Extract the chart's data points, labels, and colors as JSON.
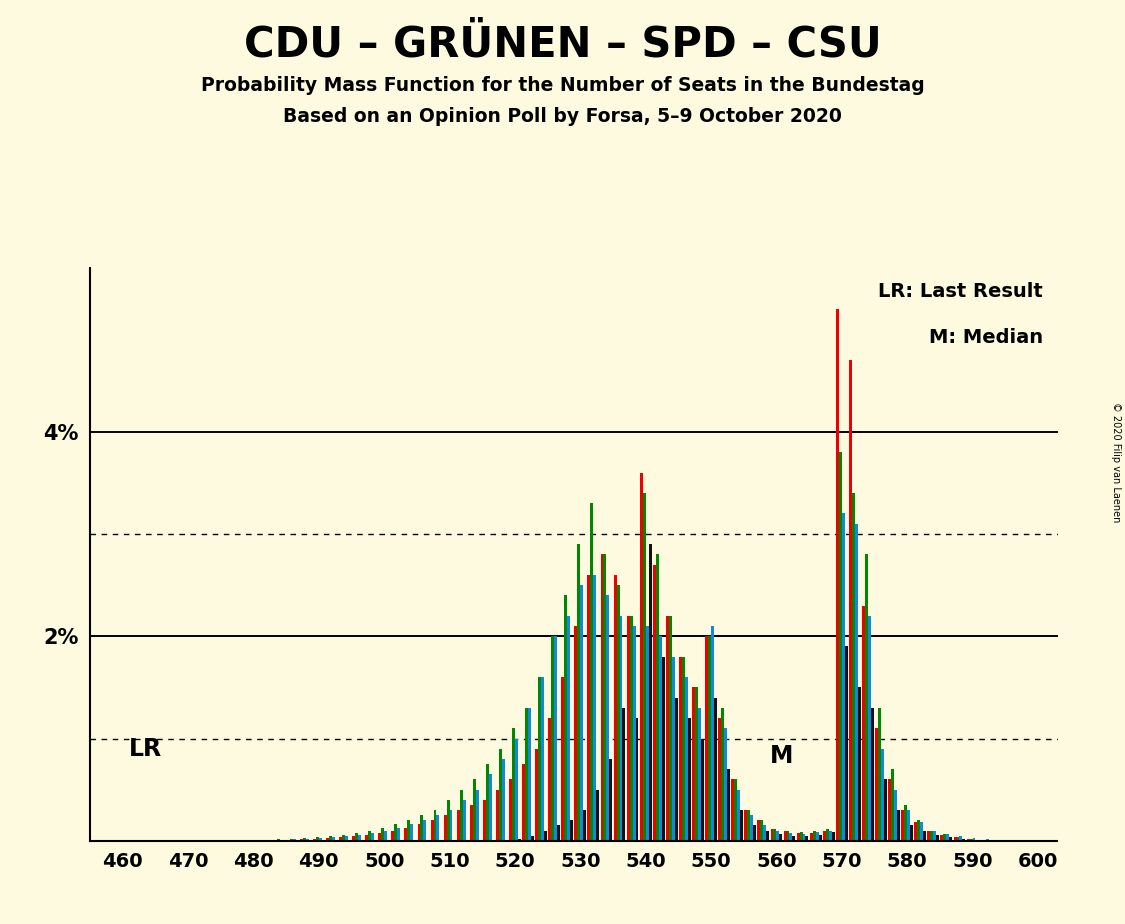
{
  "title": "CDU – GRÜNEN – SPD – CSU",
  "subtitle1": "Probability Mass Function for the Number of Seats in the Bundestag",
  "subtitle2": "Based on an Opinion Poll by Forsa, 5–9 October 2020",
  "copyright": "© 2020 Filip van Laenen",
  "legend1": "LR: Last Result",
  "legend2": "M: Median",
  "lr_label": "LR",
  "m_label": "M",
  "background_color": "#FEFAE0",
  "color_CDU": "#EE0000",
  "color_GRU": "#008800",
  "color_SPD": "#1188DD",
  "color_CSU": "#111111",
  "ylim_max": 0.056,
  "bar_width": 0.45,
  "lr_seat": 520,
  "m_seat": 557,
  "seats": [
    460,
    462,
    464,
    466,
    468,
    470,
    472,
    474,
    476,
    478,
    480,
    482,
    484,
    486,
    488,
    490,
    492,
    494,
    496,
    498,
    500,
    502,
    504,
    506,
    508,
    510,
    512,
    514,
    516,
    518,
    520,
    522,
    524,
    526,
    528,
    530,
    532,
    534,
    536,
    538,
    540,
    542,
    544,
    546,
    548,
    550,
    552,
    554,
    556,
    558,
    560,
    562,
    564,
    566,
    568,
    570,
    572,
    574,
    576,
    578,
    580,
    582,
    584,
    586,
    588,
    590,
    592,
    594,
    596,
    598,
    600
  ],
  "pmf_CDU": [
    0.0001,
    0.0001,
    0.0001,
    0.0001,
    0.0001,
    0.0001,
    0.0001,
    0.0001,
    0.0001,
    0.0001,
    0.0001,
    0.0001,
    0.0001,
    0.0001,
    0.0002,
    0.0002,
    0.0003,
    0.0004,
    0.0005,
    0.0006,
    0.0008,
    0.001,
    0.0013,
    0.0016,
    0.002,
    0.0025,
    0.003,
    0.0035,
    0.004,
    0.005,
    0.006,
    0.0075,
    0.009,
    0.012,
    0.016,
    0.021,
    0.026,
    0.028,
    0.026,
    0.022,
    0.036,
    0.027,
    0.022,
    0.018,
    0.015,
    0.02,
    0.012,
    0.006,
    0.003,
    0.002,
    0.0012,
    0.001,
    0.0008,
    0.0008,
    0.001,
    0.052,
    0.047,
    0.023,
    0.011,
    0.006,
    0.003,
    0.0018,
    0.001,
    0.0006,
    0.0004,
    0.0002,
    0.0001,
    0.0001,
    0.0001,
    0.0001,
    0.0001
  ],
  "pmf_GRU": [
    0.0001,
    0.0001,
    0.0001,
    0.0001,
    0.0001,
    0.0001,
    0.0001,
    0.0001,
    0.0001,
    0.0001,
    0.0001,
    0.0001,
    0.0002,
    0.0002,
    0.0003,
    0.0004,
    0.0005,
    0.0006,
    0.0008,
    0.001,
    0.0013,
    0.0016,
    0.002,
    0.0025,
    0.003,
    0.004,
    0.005,
    0.006,
    0.0075,
    0.009,
    0.011,
    0.013,
    0.016,
    0.02,
    0.024,
    0.029,
    0.033,
    0.028,
    0.025,
    0.022,
    0.034,
    0.028,
    0.022,
    0.018,
    0.015,
    0.02,
    0.013,
    0.006,
    0.003,
    0.002,
    0.0012,
    0.001,
    0.0009,
    0.001,
    0.0012,
    0.038,
    0.034,
    0.028,
    0.013,
    0.007,
    0.0035,
    0.002,
    0.001,
    0.0007,
    0.0004,
    0.0002,
    0.0001,
    0.0001,
    0.0001,
    0.0001,
    0.0001
  ],
  "pmf_SPD": [
    0.0001,
    0.0001,
    0.0001,
    0.0001,
    0.0001,
    0.0001,
    0.0001,
    0.0001,
    0.0001,
    0.0001,
    0.0001,
    0.0001,
    0.0001,
    0.0002,
    0.0002,
    0.0003,
    0.0004,
    0.0005,
    0.0006,
    0.0008,
    0.001,
    0.0013,
    0.0016,
    0.002,
    0.0025,
    0.003,
    0.004,
    0.005,
    0.0065,
    0.008,
    0.01,
    0.013,
    0.016,
    0.02,
    0.022,
    0.025,
    0.026,
    0.024,
    0.022,
    0.021,
    0.021,
    0.02,
    0.018,
    0.016,
    0.013,
    0.021,
    0.011,
    0.005,
    0.0025,
    0.0015,
    0.001,
    0.0008,
    0.0007,
    0.0009,
    0.001,
    0.032,
    0.031,
    0.022,
    0.009,
    0.005,
    0.003,
    0.0018,
    0.001,
    0.0007,
    0.0005,
    0.0003,
    0.0002,
    0.0001,
    0.0001,
    0.0001,
    0.0001
  ],
  "pmf_CSU": [
    0.0,
    0.0,
    0.0,
    0.0,
    0.0,
    0.0,
    0.0,
    0.0,
    0.0,
    0.0,
    0.0,
    0.0,
    0.0,
    0.0,
    0.0,
    0.0,
    0.0,
    0.0,
    0.0,
    0.0,
    0.0,
    0.0,
    0.0,
    0.0,
    0.0,
    0.0,
    0.0,
    0.0,
    0.0,
    0.0,
    0.0002,
    0.0005,
    0.001,
    0.0015,
    0.002,
    0.003,
    0.005,
    0.008,
    0.013,
    0.012,
    0.029,
    0.018,
    0.014,
    0.012,
    0.01,
    0.014,
    0.007,
    0.003,
    0.0015,
    0.001,
    0.0007,
    0.0005,
    0.0005,
    0.0006,
    0.0009,
    0.019,
    0.015,
    0.013,
    0.006,
    0.003,
    0.0015,
    0.001,
    0.0006,
    0.0004,
    0.0002,
    0.0001,
    0.0001,
    0.0,
    0.0,
    0.0,
    0.0
  ]
}
